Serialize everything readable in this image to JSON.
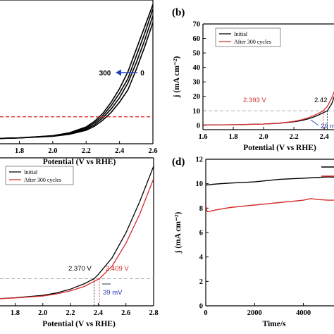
{
  "colors": {
    "black": "#000000",
    "red": "#d42a2a",
    "blue": "#2233aa",
    "ref_red": "#e02020",
    "ref_gray": "#b0b0b0",
    "arrow_blue": "#2340c0"
  },
  "chart_data": [
    {
      "panel": "a",
      "type": "line",
      "label": "",
      "xlabel": "Potential (V vs RHE)",
      "ylabel": "",
      "xlim": [
        1.65,
        2.6
      ],
      "ylim": [
        -2,
        62
      ],
      "xticks": [
        1.8,
        2.0,
        2.2,
        2.4,
        2.6
      ],
      "xtick_labels": [
        "1.8",
        "2.0",
        "2.2",
        "2.4",
        "2.6"
      ],
      "reference_line": {
        "y": 10,
        "style": "dashed",
        "color": "red"
      },
      "annotation": {
        "left": "300",
        "right": "0"
      },
      "series": [
        {
          "x": [
            1.65,
            1.8,
            2.0,
            2.1,
            2.2,
            2.25,
            2.3,
            2.35,
            2.4,
            2.45,
            2.5,
            2.55,
            2.6
          ],
          "y": [
            0.3,
            0.6,
            1.3,
            2.2,
            4,
            5.8,
            8.5,
            12,
            16.5,
            22,
            31,
            41,
            52
          ]
        },
        {
          "x": [
            1.65,
            1.8,
            2.0,
            2.1,
            2.2,
            2.25,
            2.3,
            2.35,
            2.4,
            2.45,
            2.5,
            2.55,
            2.6
          ],
          "y": [
            0.3,
            0.6,
            1.4,
            2.4,
            4.5,
            6.5,
            9.5,
            13.5,
            18.5,
            25,
            34,
            44,
            55
          ]
        },
        {
          "x": [
            1.65,
            1.8,
            2.0,
            2.1,
            2.2,
            2.25,
            2.3,
            2.35,
            2.4,
            2.45,
            2.5,
            2.55,
            2.6
          ],
          "y": [
            0.3,
            0.6,
            1.5,
            2.6,
            5,
            7.3,
            10.5,
            15,
            20.5,
            27,
            37,
            47,
            58
          ]
        },
        {
          "x": [
            1.65,
            1.8,
            2.0,
            2.1,
            2.2,
            2.25,
            2.3,
            2.35,
            2.4,
            2.45,
            2.5,
            2.55,
            2.6
          ],
          "y": [
            0.3,
            0.6,
            1.6,
            2.9,
            5.5,
            8,
            11.5,
            16.5,
            22.5,
            30,
            40,
            50,
            60
          ]
        }
      ]
    },
    {
      "panel": "b",
      "type": "line",
      "label": "(b)",
      "xlabel": "Potential (V vs RHE)",
      "ylabel": "j (mA cm⁻²)",
      "xlim": [
        1.6,
        2.52
      ],
      "ylim": [
        -3,
        70
      ],
      "xticks": [
        1.6,
        1.8,
        2.0,
        2.2,
        2.4,
        2.5
      ],
      "xtick_labels": [
        "1.6",
        "1.8",
        "2.0",
        "2.2",
        "2.4",
        "2."
      ],
      "yticks": [
        0,
        10,
        20,
        30,
        40,
        50,
        60,
        70
      ],
      "ytick_labels": [
        "0",
        "10",
        "20",
        "30",
        "40",
        "50",
        "60",
        "70"
      ],
      "legend": [
        "Initial",
        "After 300 cycles"
      ],
      "reference_line": {
        "y": 10,
        "style": "dashed",
        "color": "gray"
      },
      "annotations": {
        "red_value": "2.393 V",
        "black_value": "2.42",
        "delta": "29 m"
      },
      "series": [
        {
          "name": "Initial",
          "x": [
            1.6,
            1.8,
            2.0,
            2.1,
            2.2,
            2.25,
            2.3,
            2.35,
            2.4,
            2.42,
            2.45,
            2.48,
            2.52
          ],
          "y": [
            0.2,
            0.4,
            0.9,
            1.4,
            2.4,
            3.3,
            4.6,
            6.5,
            9.0,
            10.0,
            15,
            24,
            36
          ]
        },
        {
          "name": "After 300 cycles",
          "x": [
            1.6,
            1.8,
            2.0,
            2.1,
            2.2,
            2.25,
            2.3,
            2.35,
            2.393,
            2.42,
            2.45,
            2.48,
            2.52
          ],
          "y": [
            0.2,
            0.4,
            0.9,
            1.5,
            2.7,
            3.8,
            5.4,
            7.6,
            10.0,
            13,
            19,
            27,
            38
          ]
        }
      ]
    },
    {
      "panel": "c",
      "type": "line",
      "label": "",
      "xlabel": "Potential (V vs RHE)",
      "ylabel": "",
      "xlim": [
        1.65,
        2.8
      ],
      "ylim": [
        -3,
        68
      ],
      "xticks": [
        1.8,
        2.0,
        2.2,
        2.4,
        2.6,
        2.8
      ],
      "xtick_labels": [
        "1.8",
        "2.0",
        "2.2",
        "2.4",
        "2.6",
        "2.8"
      ],
      "legend": [
        "Initial",
        "After 300 cycles"
      ],
      "reference_line": {
        "y": 10,
        "style": "dashed",
        "color": "gray"
      },
      "annotations": {
        "black_value": "2.370 V",
        "red_value": "2.409 V",
        "delta": "39 mV"
      },
      "series": [
        {
          "name": "Initial",
          "x": [
            1.65,
            1.8,
            2.0,
            2.1,
            2.2,
            2.3,
            2.37,
            2.4,
            2.5,
            2.6,
            2.7,
            2.8
          ],
          "y": [
            0.3,
            0.9,
            2.0,
            3.2,
            5.0,
            7.6,
            10.0,
            12,
            20,
            32,
            47,
            64
          ]
        },
        {
          "name": "After 300 cycles",
          "x": [
            1.65,
            1.8,
            2.0,
            2.1,
            2.2,
            2.3,
            2.409,
            2.5,
            2.6,
            2.7,
            2.8
          ],
          "y": [
            0.3,
            0.8,
            1.7,
            2.7,
            4.2,
            6.3,
            10.0,
            16,
            27,
            41,
            58
          ]
        }
      ]
    },
    {
      "panel": "d",
      "type": "line",
      "label": "(d)",
      "xlabel": "Time/s",
      "ylabel": "j (mA cm⁻²)",
      "xlim": [
        0,
        5600
      ],
      "ylim": [
        0,
        12
      ],
      "xticks": [
        0,
        2000,
        4000
      ],
      "xtick_labels": [
        "0",
        "2000",
        "4000"
      ],
      "yticks": [
        0,
        2,
        4,
        6,
        8,
        10,
        12
      ],
      "ytick_labels": [
        "0",
        "2",
        "4",
        "6",
        "8",
        "10",
        "12"
      ],
      "series": [
        {
          "x": [
            0,
            100,
            300,
            600,
            1000,
            1500,
            2000,
            2500,
            3000,
            3500,
            4000,
            4500,
            5000,
            5600
          ],
          "y": [
            9.9,
            9.9,
            9.95,
            10.0,
            10.05,
            10.1,
            10.15,
            10.25,
            10.35,
            10.4,
            10.45,
            10.5,
            10.55,
            10.5
          ]
        },
        {
          "x": [
            0,
            40,
            80,
            200,
            400,
            700,
            1000,
            1500,
            2000,
            2500,
            3000,
            3500,
            4000,
            4300,
            4600,
            5000,
            5600
          ],
          "y": [
            8.3,
            7.8,
            7.7,
            7.75,
            7.85,
            7.95,
            8.05,
            8.15,
            8.25,
            8.35,
            8.45,
            8.55,
            8.65,
            8.78,
            8.7,
            8.65,
            8.65
          ]
        }
      ]
    }
  ]
}
